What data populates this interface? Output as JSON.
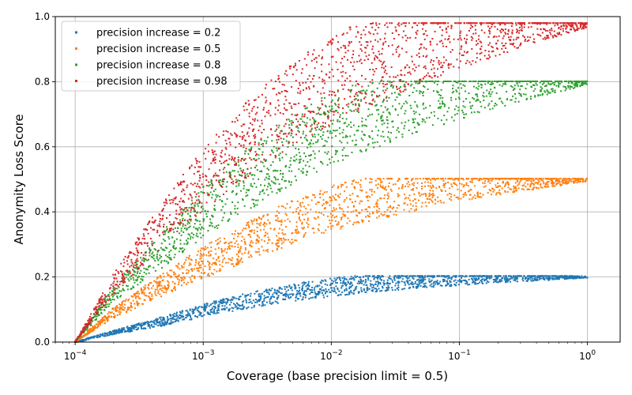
{
  "chart_data": {
    "type": "scatter",
    "title": "",
    "xlabel": "Coverage (base precision limit = 0.5)",
    "ylabel": "Anonymity Loss Score",
    "xscale": "log",
    "xlim": [
      7e-05,
      1.8
    ],
    "ylim": [
      0.0,
      1.0
    ],
    "x_ticks": [
      0.0001,
      0.001,
      0.01,
      0.1,
      1
    ],
    "x_tick_labels": [
      {
        "base": "10",
        "exp": "−4"
      },
      {
        "base": "10",
        "exp": "−3"
      },
      {
        "base": "10",
        "exp": "−2"
      },
      {
        "base": "10",
        "exp": "−1"
      },
      {
        "base": "10",
        "exp": "0"
      }
    ],
    "y_ticks": [
      0.0,
      0.2,
      0.4,
      0.6,
      0.8,
      1.0
    ],
    "y_tick_labels": [
      "0.0",
      "0.2",
      "0.4",
      "0.6",
      "0.8",
      "1.0"
    ],
    "grid": true,
    "legend_position": "top-left",
    "series": [
      {
        "name": "precision increase = 0.2",
        "color": "#1f77b4",
        "points": [
          [
            0.0001,
            0.0
          ],
          [
            0.0002,
            0.03
          ],
          [
            0.0005,
            0.065
          ],
          [
            0.001,
            0.097
          ],
          [
            0.002,
            0.124
          ],
          [
            0.005,
            0.152
          ],
          [
            0.01,
            0.168
          ],
          [
            0.02,
            0.181
          ],
          [
            0.05,
            0.191
          ],
          [
            0.1,
            0.195
          ],
          [
            0.2,
            0.198
          ],
          [
            0.5,
            0.199
          ],
          [
            1,
            0.2
          ]
        ]
      },
      {
        "name": "precision increase = 0.5",
        "color": "#ff7f0e",
        "points": [
          [
            0.0001,
            0.0
          ],
          [
            0.0002,
            0.09
          ],
          [
            0.0005,
            0.18
          ],
          [
            0.001,
            0.245
          ],
          [
            0.002,
            0.3
          ],
          [
            0.005,
            0.37
          ],
          [
            0.01,
            0.41
          ],
          [
            0.02,
            0.44
          ],
          [
            0.05,
            0.47
          ],
          [
            0.1,
            0.483
          ],
          [
            0.2,
            0.492
          ],
          [
            0.5,
            0.497
          ],
          [
            1,
            0.499
          ]
        ]
      },
      {
        "name": "precision increase = 0.8",
        "color": "#2ca02c",
        "points": [
          [
            0.0001,
            0.0
          ],
          [
            0.0002,
            0.15
          ],
          [
            0.0005,
            0.29
          ],
          [
            0.001,
            0.4
          ],
          [
            0.002,
            0.49
          ],
          [
            0.005,
            0.59
          ],
          [
            0.01,
            0.655
          ],
          [
            0.02,
            0.7
          ],
          [
            0.05,
            0.745
          ],
          [
            0.1,
            0.768
          ],
          [
            0.2,
            0.785
          ],
          [
            0.5,
            0.795
          ],
          [
            1,
            0.798
          ]
        ]
      },
      {
        "name": "precision increase = 0.98",
        "color": "#d62728",
        "points": [
          [
            0.0001,
            0.0
          ],
          [
            0.0002,
            0.18
          ],
          [
            0.0005,
            0.37
          ],
          [
            0.001,
            0.5
          ],
          [
            0.002,
            0.61
          ],
          [
            0.005,
            0.73
          ],
          [
            0.01,
            0.805
          ],
          [
            0.02,
            0.86
          ],
          [
            0.05,
            0.915
          ],
          [
            0.1,
            0.94
          ],
          [
            0.2,
            0.96
          ],
          [
            0.5,
            0.973
          ],
          [
            1,
            0.977
          ]
        ]
      }
    ]
  }
}
